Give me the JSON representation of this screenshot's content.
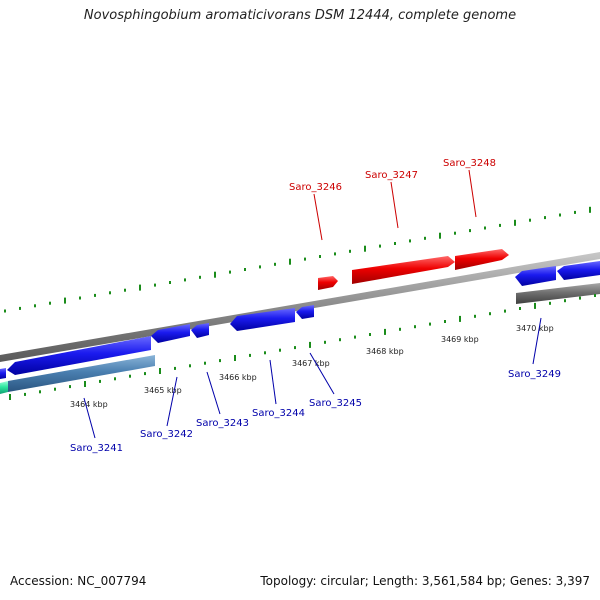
{
  "title": "Novosphingobium aromaticivorans DSM 12444, complete genome",
  "footer": {
    "accession": "Accession: NC_007794",
    "summary": "Topology: circular; Length: 3,561,584 bp; Genes: 3,397"
  },
  "colors": {
    "forward": "#ee0000",
    "reverse": "#1a1aee",
    "pseudo_gray": "#707070",
    "steel": "#4a7fb0",
    "teal": "#2ee8a0",
    "backbone": "#8a8a8a",
    "tick": "#1a8c1a",
    "label_forward": "#cc0000",
    "label_reverse": "#0000aa"
  },
  "scale_labels": [
    "3464 kbp",
    "3465 kbp",
    "3466 kbp",
    "3467 kbp",
    "3468 kbp",
    "3469 kbp",
    "3470 kbp"
  ],
  "genes_forward": [
    "Saro_3246",
    "Saro_3247",
    "Saro_3248"
  ],
  "genes_reverse": [
    "Saro_3241",
    "Saro_3242",
    "Saro_3243",
    "Saro_3244",
    "Saro_3245",
    "Saro_3249"
  ]
}
